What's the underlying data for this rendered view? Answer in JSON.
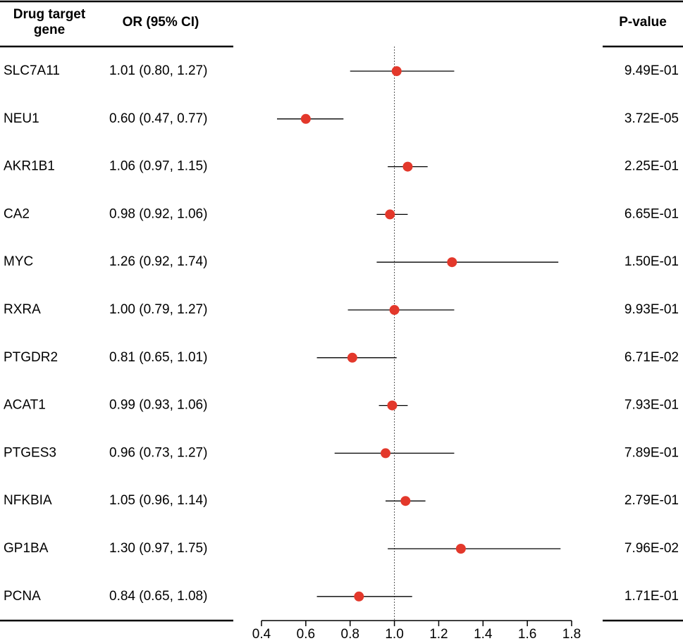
{
  "chart_data": {
    "type": "forest",
    "columns": [
      "Drug target gene",
      "OR (95% CI)",
      "P-value"
    ],
    "categories": [
      "SLC7A11",
      "NEU1",
      "AKR1B1",
      "CA2",
      "MYC",
      "RXRA",
      "PTGDR2",
      "ACAT1",
      "PTGES3",
      "NFKBIA",
      "GP1BA",
      "PCNA"
    ],
    "values": [
      1.01,
      0.6,
      1.06,
      0.98,
      1.26,
      1.0,
      0.81,
      0.99,
      0.96,
      1.05,
      1.3,
      0.84
    ],
    "lower": [
      0.8,
      0.47,
      0.97,
      0.92,
      0.92,
      0.79,
      0.65,
      0.93,
      0.73,
      0.96,
      0.97,
      0.65
    ],
    "upper": [
      1.27,
      0.77,
      1.15,
      1.06,
      1.74,
      1.27,
      1.01,
      1.06,
      1.27,
      1.14,
      1.75,
      1.08
    ],
    "value_labels": [
      "1.01 (0.80, 1.27)",
      "0.60 (0.47, 0.77)",
      "1.06 (0.97, 1.15)",
      "0.98 (0.92, 1.06)",
      "1.26 (0.92, 1.74)",
      "1.00 (0.79, 1.27)",
      "0.81 (0.65, 1.01)",
      "0.99 (0.93, 1.06)",
      "0.96 (0.73, 1.27)",
      "1.05 (0.96, 1.14)",
      "1.30 (0.97, 1.75)",
      "0.84 (0.65, 1.08)"
    ],
    "p_values": [
      "9.49E-01",
      "3.72E-05",
      "2.25E-01",
      "6.65E-01",
      "1.50E-01",
      "9.93E-01",
      "6.71E-02",
      "7.93E-01",
      "7.89E-01",
      "2.79E-01",
      "7.96E-02",
      "1.71E-01"
    ],
    "color": "#e3382b",
    "ref_line": 1,
    "xlim": [
      0.4,
      1.8
    ],
    "xticks": [
      0.4,
      0.6,
      0.8,
      {
        "value": 1,
        "label": "1.0"
      },
      1.2,
      1.4,
      1.6,
      1.8
    ]
  }
}
